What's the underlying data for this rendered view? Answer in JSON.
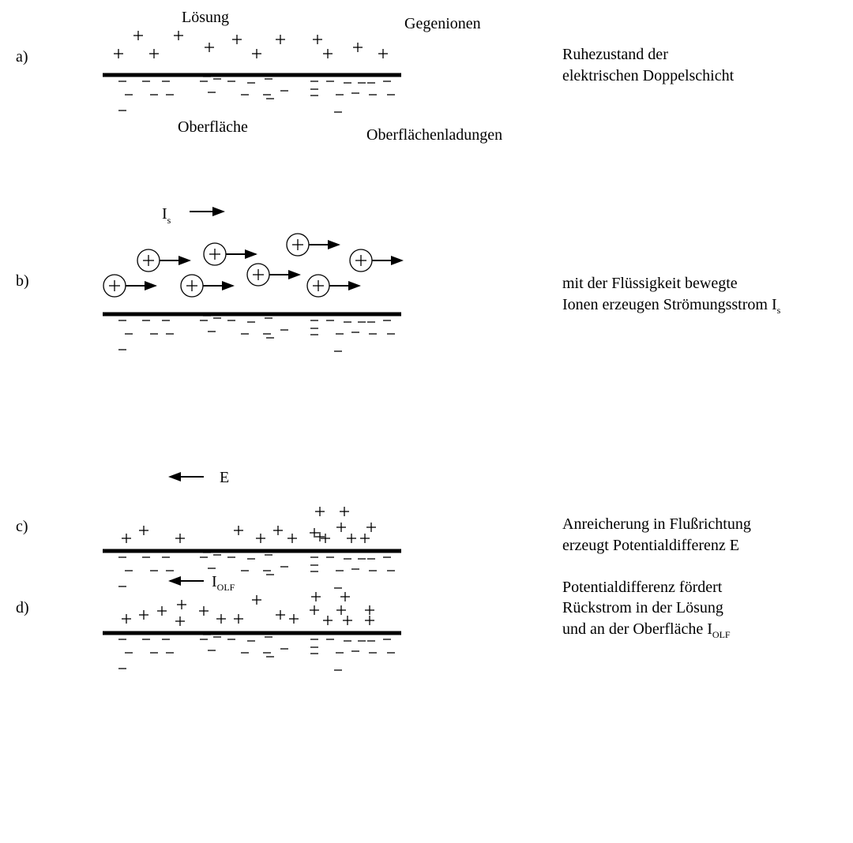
{
  "panels": [
    {
      "label": "a)",
      "annotations": [
        "Lösung",
        "Gegenionen",
        "Oberfläche",
        "Oberflächenladungen"
      ],
      "description": [
        "Ruhezustand der",
        "elektrischen Doppelschicht"
      ]
    },
    {
      "label": "b)",
      "current": {
        "text": "I",
        "sub": "s"
      },
      "description": [
        "mit der Flüssigkeit bewegte",
        {
          "text": "Ionen erzeugen Strömungsstrom I",
          "sub": "s"
        }
      ]
    },
    {
      "label": "c)",
      "field": "E",
      "description": [
        "Anreicherung in Flußrichtung",
        "erzeugt Potentialdifferenz E"
      ]
    },
    {
      "label": "d)",
      "current": {
        "text": "I",
        "sub": "OLF"
      },
      "description": [
        "Potentialdifferenz fördert",
        "Rückstrom in der Lösung",
        {
          "text": "und an der Oberfläche I",
          "sub": "OLF"
        }
      ]
    }
  ]
}
